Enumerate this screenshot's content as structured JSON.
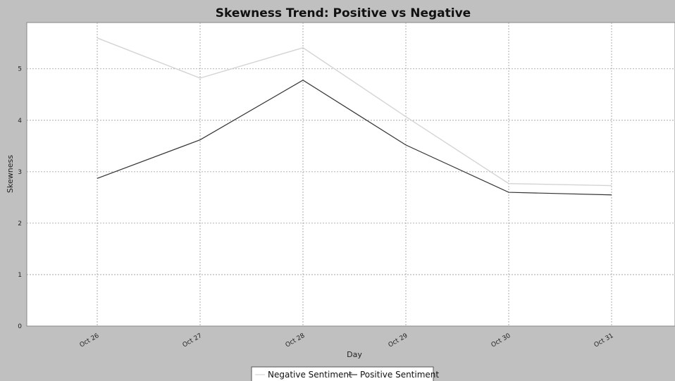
{
  "chart_data": {
    "type": "line",
    "title": "Skewness Trend: Positive vs Negative",
    "xlabel": "Day",
    "ylabel": "Skewness",
    "categories": [
      "Oct 26",
      "Oct 27",
      "Oct 28",
      "Oct 29",
      "Oct 30",
      "Oct 31"
    ],
    "ylim": [
      0,
      5.9
    ],
    "yticks": [
      "0",
      "1",
      "2",
      "3",
      "4",
      "5"
    ],
    "grid": true,
    "legend_position": "bottom",
    "series": [
      {
        "name": "Negative Sentiment",
        "color": "#d4d4d4",
        "values": [
          5.6,
          4.82,
          5.41,
          4.07,
          2.77,
          2.73
        ]
      },
      {
        "name": "Positive Sentiment",
        "color": "#333333",
        "values": [
          2.87,
          3.62,
          4.78,
          3.52,
          2.6,
          2.55
        ]
      }
    ]
  }
}
